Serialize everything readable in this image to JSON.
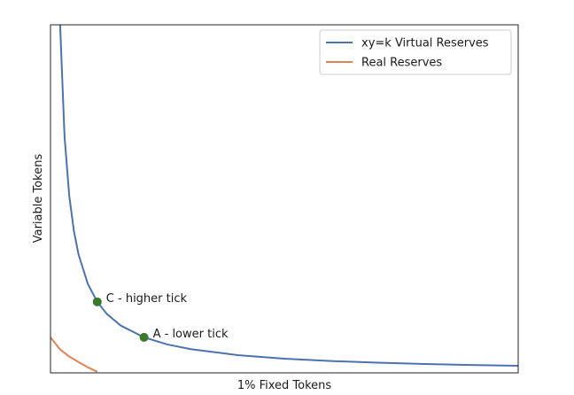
{
  "chart_data": {
    "type": "line",
    "xlabel": "1% Fixed Tokens",
    "ylabel": "Variable Tokens",
    "xlim": [
      0,
      100
    ],
    "ylim": [
      0,
      100
    ],
    "x_ticks_visible": false,
    "y_ticks_visible": false,
    "grid": false,
    "legend_position": "top-right",
    "series": [
      {
        "name": "xy=k Virtual Reserves",
        "color": "#4c72b0",
        "x": [
          2,
          3,
          4,
          5,
          6,
          8,
          10,
          12,
          15,
          20,
          25,
          30,
          40,
          50,
          60,
          70,
          80,
          90,
          100
        ],
        "y": [
          102,
          68,
          51,
          40.8,
          34,
          25.5,
          20.4,
          17,
          13.6,
          10.2,
          8.16,
          6.8,
          5.1,
          4.08,
          3.4,
          2.91,
          2.55,
          2.27,
          2.04
        ]
      },
      {
        "name": "Real Reserves",
        "color": "#dd8452",
        "x": [
          0,
          2,
          4,
          6,
          8,
          10
        ],
        "y": [
          10.2,
          6.8,
          4.7,
          3.1,
          1.6,
          0.3
        ]
      }
    ],
    "points": [
      {
        "label": "C - higher tick",
        "x": 10,
        "y": 20.4,
        "color": "#3a7a2a"
      },
      {
        "label": "A - lower tick",
        "x": 20,
        "y": 10.2,
        "color": "#3a7a2a"
      }
    ]
  }
}
